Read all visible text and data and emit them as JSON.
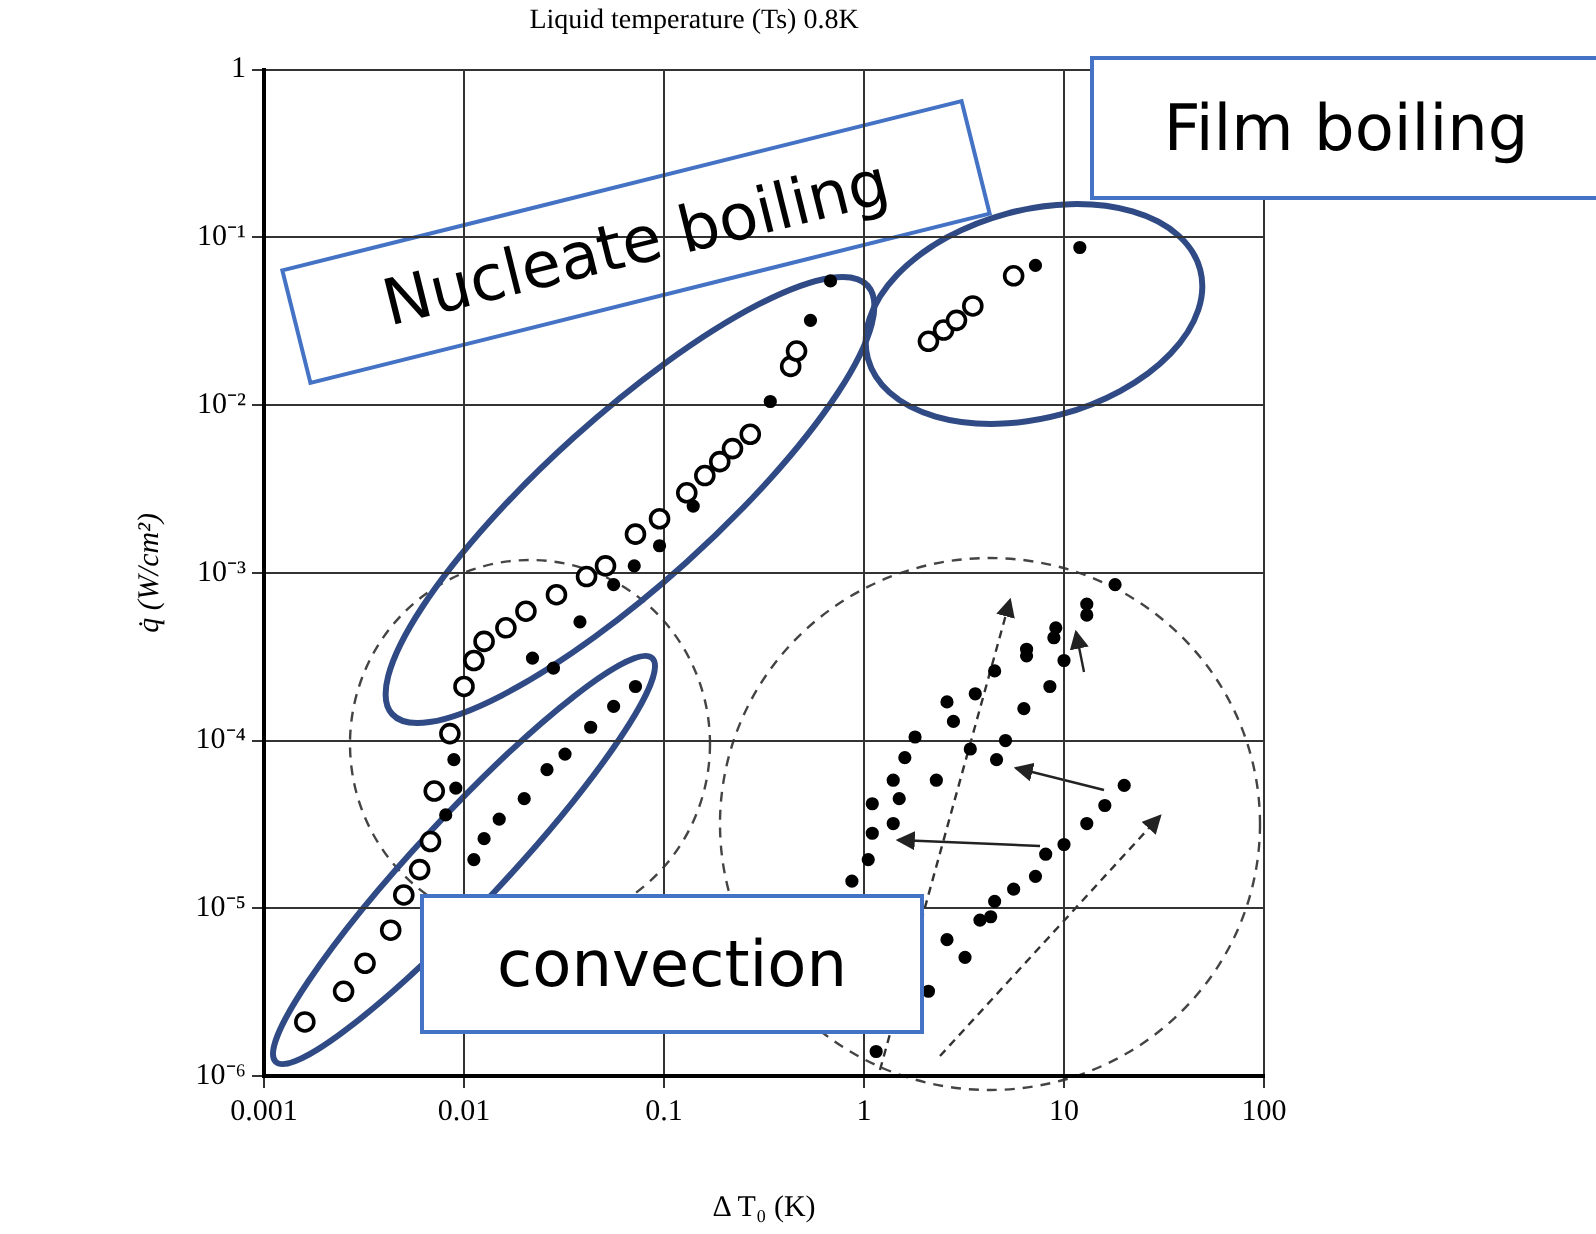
{
  "chart_data": {
    "type": "scatter",
    "title": "Liquid temperature (Ts) 0.8K",
    "xlabel": "Δ T₀ (K)",
    "ylabel": "q̇ (W/cm²)",
    "log": "xy",
    "grid": true,
    "marker": "circle",
    "xlim": [
      0.001,
      100
    ],
    "xticks": [
      0.001,
      0.01,
      0.1,
      1,
      10,
      100
    ],
    "ylim": [
      1e-06,
      1
    ],
    "yticks": [
      {
        "value": 1e-06,
        "label": "10⁻⁶"
      },
      {
        "value": 1e-05,
        "label": "10⁻⁵"
      },
      {
        "value": 0.0001,
        "label": "10⁻⁴"
      },
      {
        "value": 0.001,
        "label": "10⁻³"
      },
      {
        "value": 0.01,
        "label": "10⁻²"
      },
      {
        "value": 0.1,
        "label": "10⁻¹"
      },
      1
    ],
    "annotations": [
      "Nucleate boiling",
      "Film boiling",
      "convection"
    ],
    "series": [
      {
        "color": "#000000",
        "x": [
          0.0016,
          0.0025,
          0.0032,
          0.0043,
          0.005,
          0.006,
          0.0068,
          0.0071,
          0.0085,
          0.01,
          0.0112,
          0.0126,
          0.0162,
          0.0204,
          0.029,
          0.041,
          0.051,
          0.072,
          0.095,
          0.13,
          0.16,
          0.19,
          0.22,
          0.27,
          0.43,
          0.46,
          2.1,
          2.5,
          2.9,
          3.5,
          5.6
        ],
        "values": [
          2.1e-06,
          3.2e-06,
          4.7e-06,
          7.4e-06,
          1.2e-05,
          1.7e-05,
          2.5e-05,
          5e-05,
          0.00011,
          0.00021,
          0.0003,
          0.00039,
          0.00047,
          0.00059,
          0.00074,
          0.00095,
          0.0011,
          0.0017,
          0.0021,
          0.003,
          0.0038,
          0.0046,
          0.0055,
          0.0067,
          0.017,
          0.021,
          0.024,
          0.028,
          0.032,
          0.039,
          0.059
        ]
      },
      {
        "color": "#000000",
        "x": [
          0.0081,
          0.0091,
          0.0089,
          0.0095,
          0.0112,
          0.0126,
          0.015,
          0.02,
          0.026,
          0.032,
          0.043,
          0.056,
          0.072,
          0.022,
          0.028,
          0.038,
          0.056,
          0.071,
          0.095,
          0.14,
          0.34,
          0.54,
          0.68,
          7.2,
          12
        ],
        "values": [
          3.6e-05,
          5.2e-05,
          7.7e-05,
          null,
          1.95e-05,
          2.6e-05,
          3.4e-05,
          4.5e-05,
          6.7e-05,
          8.3e-05,
          0.00012,
          0.00016,
          0.00021,
          0.00031,
          0.00027,
          0.00051,
          0.00085,
          0.0011,
          0.00145,
          0.0025,
          0.0105,
          0.032,
          0.055,
          0.068,
          0.087
        ]
      },
      {
        "color": "#000000",
        "x": [
          18,
          13,
          13,
          9.1,
          8.9,
          6.5,
          6.5,
          10,
          4.5,
          3.6,
          8.5,
          6.3,
          2.6,
          2.8,
          5.1,
          1.8,
          3.4,
          4.6,
          1.6,
          1.4,
          2.3,
          20,
          1.5,
          1.1,
          16,
          1.4,
          13,
          1.1,
          10,
          8.1,
          1.05,
          7.2,
          0.87,
          5.6,
          4.5,
          4.3,
          3.8,
          2.6,
          3.2,
          2.1,
          1.15
        ],
        "values": [
          0.00085,
          0.00065,
          0.00056,
          0.00047,
          0.00041,
          0.00035,
          0.00032,
          0.0003,
          0.00026,
          0.00019,
          0.00021,
          0.000155,
          0.00017,
          0.00013,
          0.0001,
          0.000105,
          8.9e-05,
          7.7e-05,
          7.9e-05,
          5.8e-05,
          5.8e-05,
          5.4e-05,
          4.5e-05,
          4.2e-05,
          4.1e-05,
          3.2e-05,
          3.2e-05,
          2.8e-05,
          2.4e-05,
          2.1e-05,
          1.95e-05,
          1.55e-05,
          1.45e-05,
          1.3e-05,
          1.1e-05,
          8.9e-06,
          8.5e-06,
          6.5e-06,
          5.1e-06,
          3.2e-06,
          1.4e-06
        ]
      }
    ]
  }
}
